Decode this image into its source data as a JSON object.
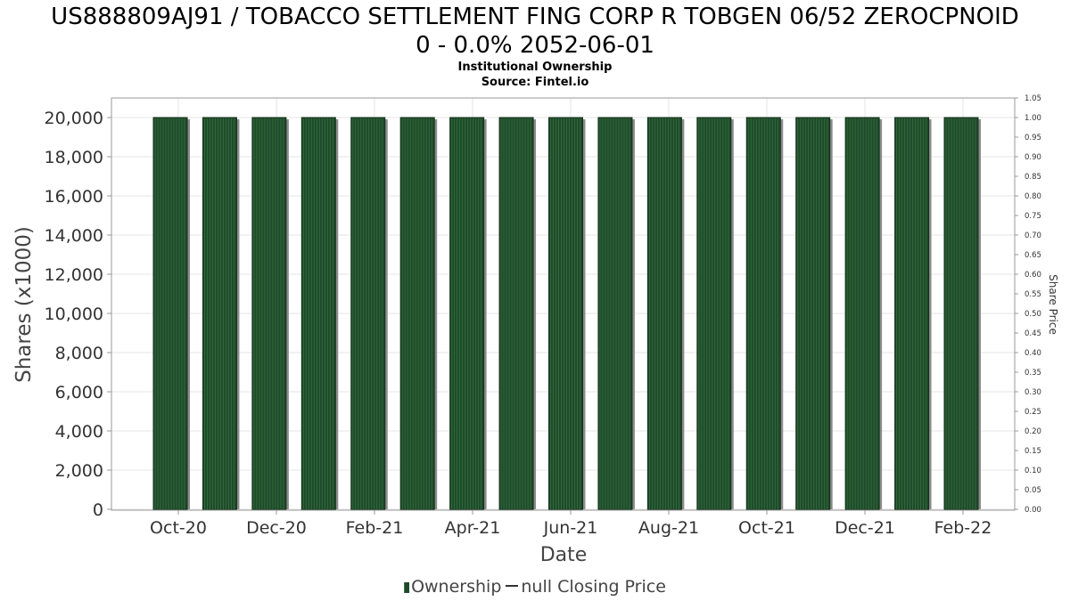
{
  "header": {
    "title_line1": "US888809AJ91 / TOBACCO SETTLEMENT FING CORP R TOBGEN 06/52 ZEROCPNOID",
    "title_line2": "0 - 0.0% 2052-06-01",
    "subtitle": "Institutional Ownership",
    "source": "Source: Fintel.io"
  },
  "legend": {
    "ownership_label": "Ownership",
    "price_label": "null Closing Price"
  },
  "colors": {
    "bar_fill": "#1f4a2a",
    "bar_stripe": "#2f6b3c",
    "bar_shadow": "#8c8c8c",
    "grid": "#e6e6e6",
    "axis_text": "#333333"
  },
  "chart_data": {
    "type": "bar",
    "title": "US888809AJ91 / TOBACCO SETTLEMENT FING CORP R TOBGEN 06/52 ZEROCPNOID 0 - 0.0% 2052-06-01",
    "xlabel": "Date",
    "ylabel": "Shares (x1000)",
    "y2label": "Share Price",
    "ylim": [
      0,
      20000
    ],
    "y_ticks": [
      "0",
      "2,000",
      "4,000",
      "6,000",
      "8,000",
      "10,000",
      "12,000",
      "14,000",
      "16,000",
      "18,000",
      "20,000"
    ],
    "y2lim": [
      0,
      1.05
    ],
    "y2_ticks": [
      "0.00",
      "0.05",
      "0.10",
      "0.15",
      "0.20",
      "0.25",
      "0.30",
      "0.35",
      "0.40",
      "0.45",
      "0.50",
      "0.55",
      "0.60",
      "0.65",
      "0.70",
      "0.75",
      "0.80",
      "0.85",
      "0.90",
      "0.95",
      "1.00",
      "1.05"
    ],
    "x_ticks": [
      "Oct-20",
      "Dec-20",
      "Feb-21",
      "Apr-21",
      "Jun-21",
      "Aug-21",
      "Oct-21",
      "Dec-21",
      "Feb-22"
    ],
    "grid": true,
    "legend_position": "bottom",
    "series": [
      {
        "name": "Ownership",
        "values": [
          20000,
          20000,
          20000,
          20000,
          20000,
          20000,
          20000,
          20000,
          20000,
          20000,
          20000,
          20000,
          20000,
          20000,
          20000,
          20000,
          20000
        ]
      }
    ]
  }
}
